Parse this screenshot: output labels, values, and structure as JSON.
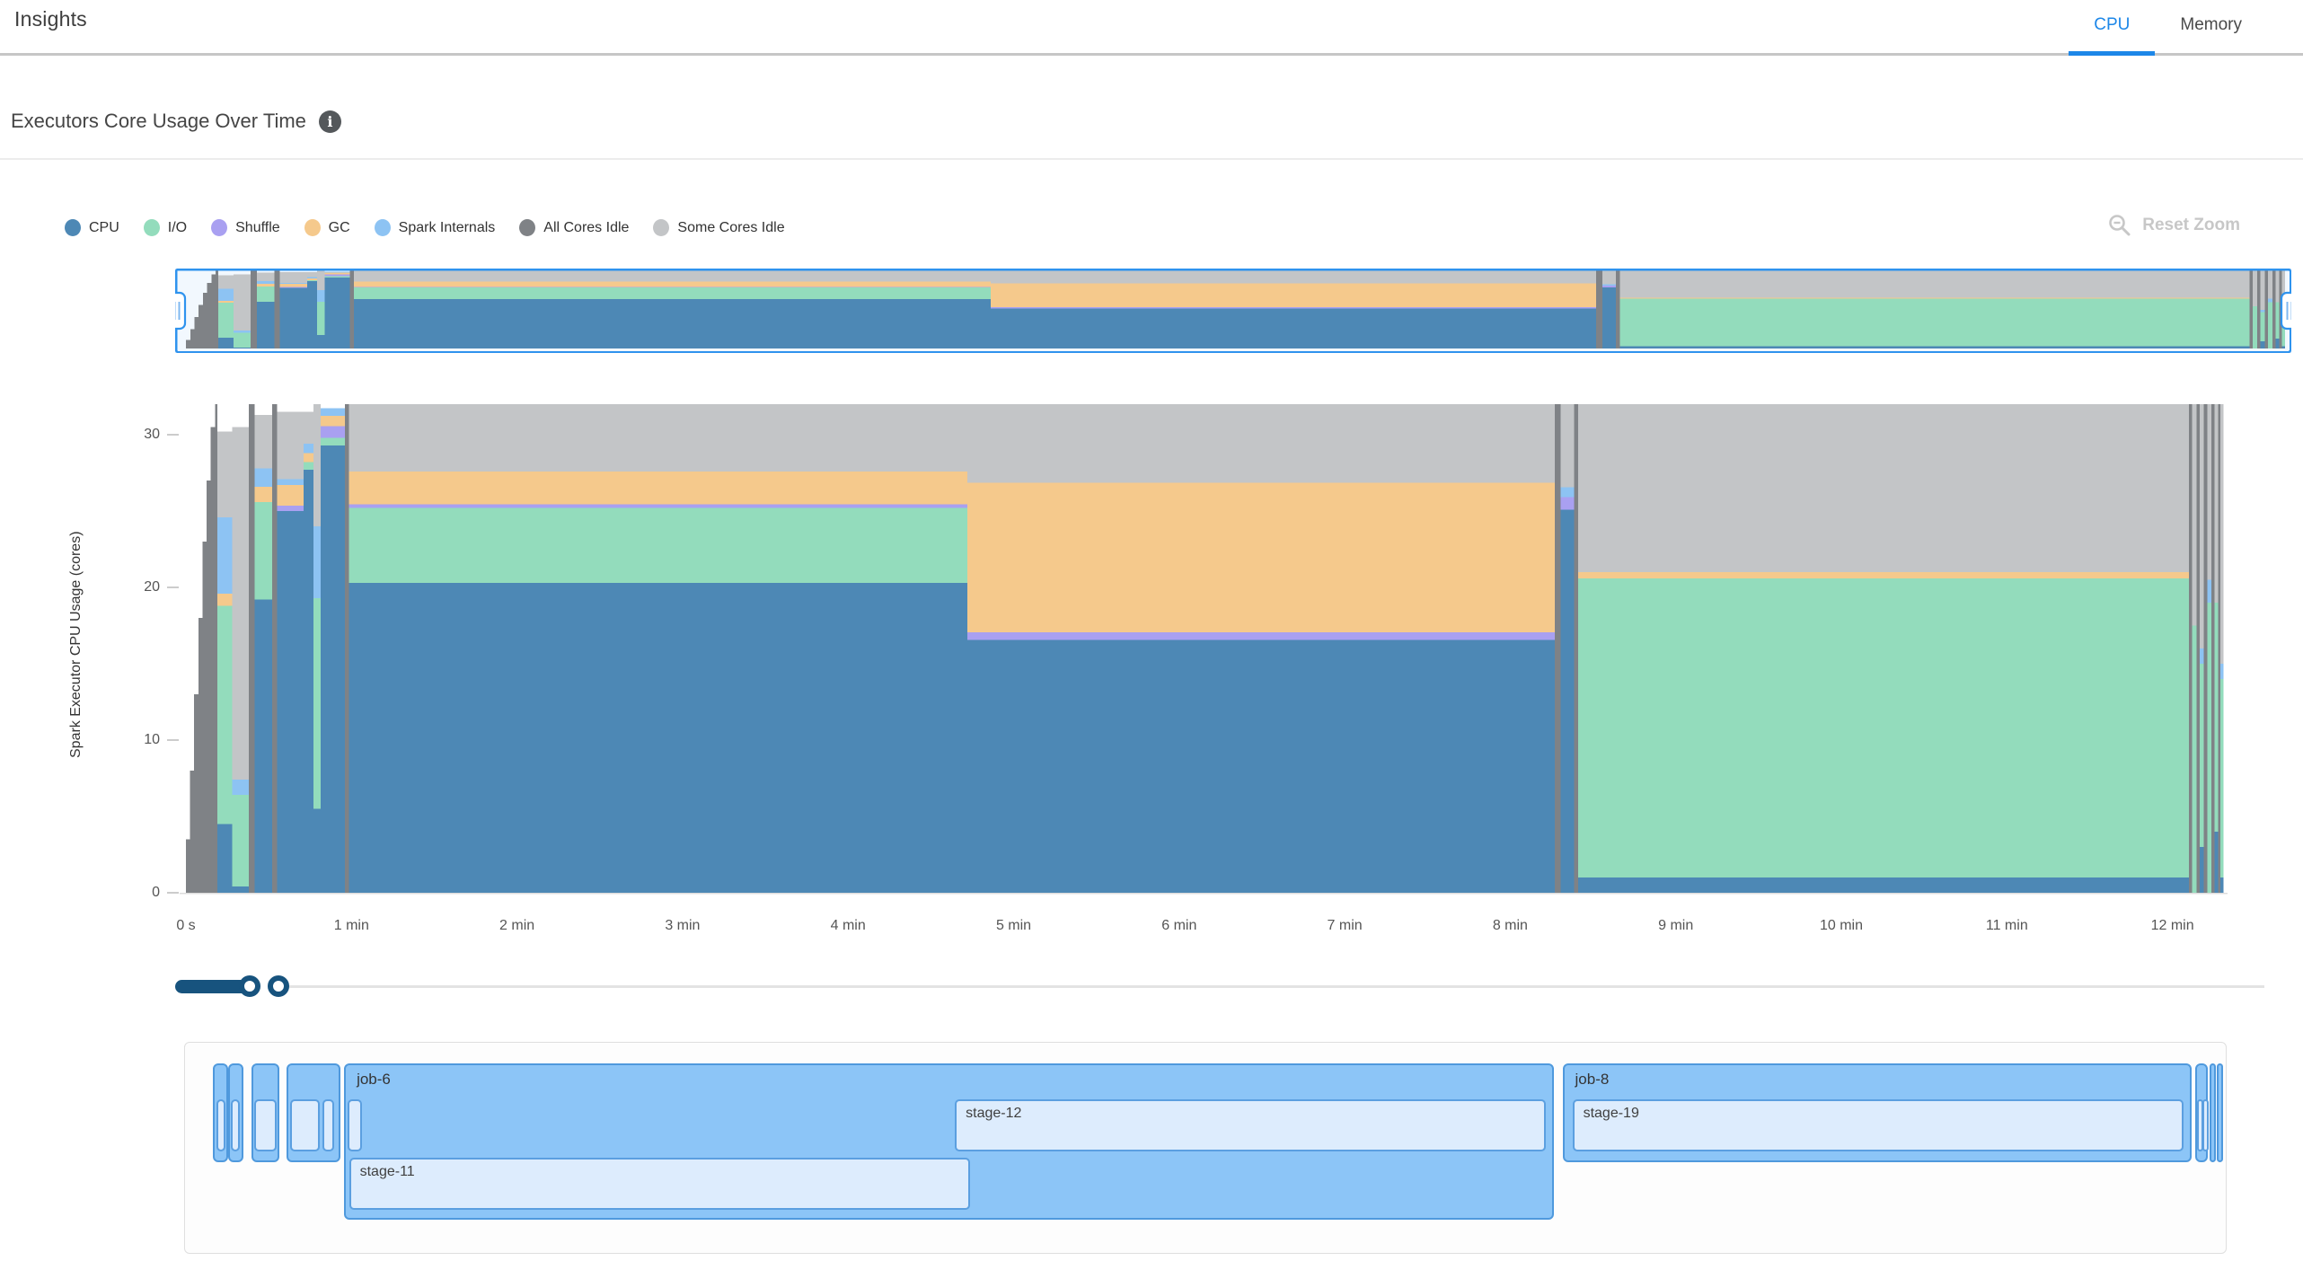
{
  "header": {
    "title": "Insights",
    "tabs": [
      {
        "label": "CPU",
        "active": true
      },
      {
        "label": "Memory",
        "active": false
      }
    ],
    "accent_color": "#1d87e8"
  },
  "section": {
    "title": "Executors Core Usage Over Time"
  },
  "controls": {
    "reset_zoom_label": "Reset Zoom"
  },
  "legend": [
    {
      "id": "cpu",
      "label": "CPU",
      "color": "#4d88b5"
    },
    {
      "id": "io",
      "label": "I/O",
      "color": "#93dcbc"
    },
    {
      "id": "shuffle",
      "label": "Shuffle",
      "color": "#a9a0f1"
    },
    {
      "id": "gc",
      "label": "GC",
      "color": "#f5c98c"
    },
    {
      "id": "internals",
      "label": "Spark Internals",
      "color": "#8dc3f3"
    },
    {
      "id": "all_idle",
      "label": "All Cores Idle",
      "color": "#7f8286"
    },
    {
      "id": "some_idle",
      "label": "Some Cores Idle",
      "color": "#c3c5c7"
    }
  ],
  "chart_data": {
    "type": "area",
    "stacked": true,
    "title": "Executors Core Usage Over Time",
    "ylabel": "Spark Executor CPU Usage (cores)",
    "ylim": [
      0,
      32
    ],
    "yticks": [
      0,
      10,
      20,
      30
    ],
    "x_domain_minutes": [
      0,
      12.31
    ],
    "xticks": [
      {
        "t": 0,
        "label": "0 s"
      },
      {
        "t": 1,
        "label": "1 min"
      },
      {
        "t": 2,
        "label": "2 min"
      },
      {
        "t": 3,
        "label": "3 min"
      },
      {
        "t": 4,
        "label": "4 min"
      },
      {
        "t": 5,
        "label": "5 min"
      },
      {
        "t": 6,
        "label": "6 min"
      },
      {
        "t": 7,
        "label": "7 min"
      },
      {
        "t": 8,
        "label": "8 min"
      },
      {
        "t": 9,
        "label": "9 min"
      },
      {
        "t": 10,
        "label": "10 min"
      },
      {
        "t": 11,
        "label": "11 min"
      },
      {
        "t": 12,
        "label": "12 min"
      }
    ],
    "series_order": [
      "cpu",
      "io",
      "shuffle",
      "gc",
      "internals",
      "all_idle",
      "some_idle"
    ],
    "series_colors": {
      "cpu": "#4d88b5",
      "io": "#93dcbc",
      "shuffle": "#a9a0f1",
      "gc": "#f5c98c",
      "internals": "#8dc3f3",
      "all_idle": "#7f8286",
      "some_idle": "#c3c5c7"
    },
    "segments_format": [
      "t0_min",
      "t1_min",
      "cpu",
      "io",
      "shuffle",
      "gc",
      "internals",
      "all_cores_idle",
      "some_cores_idle"
    ],
    "segments": [
      [
        0.0,
        0.025,
        0,
        0,
        0,
        0,
        0,
        3.5,
        0
      ],
      [
        0.025,
        0.05,
        0,
        0,
        0,
        0,
        0,
        8,
        0
      ],
      [
        0.05,
        0.075,
        0,
        0,
        0,
        0,
        0,
        13,
        0
      ],
      [
        0.075,
        0.1,
        0,
        0,
        0,
        0,
        0,
        18,
        0
      ],
      [
        0.1,
        0.125,
        0,
        0,
        0,
        0,
        0,
        23,
        0
      ],
      [
        0.125,
        0.15,
        0,
        0,
        0,
        0,
        0,
        27,
        0
      ],
      [
        0.15,
        0.175,
        0,
        0,
        0,
        0,
        0,
        30.5,
        0
      ],
      [
        0.175,
        0.19,
        0,
        0,
        0,
        0,
        0,
        32,
        0
      ],
      [
        0.19,
        0.28,
        4.5,
        14.3,
        0,
        0.8,
        5,
        0,
        5.6
      ],
      [
        0.28,
        0.38,
        0.4,
        6,
        0,
        0,
        1,
        0,
        23.1
      ],
      [
        0.38,
        0.415,
        0,
        0,
        0,
        0,
        0,
        32,
        0
      ],
      [
        0.415,
        0.52,
        19.2,
        6.4,
        0,
        1,
        1.2,
        0,
        3.5
      ],
      [
        0.52,
        0.55,
        0,
        0,
        0,
        0,
        0,
        32,
        0
      ],
      [
        0.55,
        0.71,
        25,
        0,
        0.35,
        1.35,
        0.4,
        0,
        4.4
      ],
      [
        0.71,
        0.77,
        27.7,
        0.5,
        0,
        0.6,
        0.6,
        0,
        2.1
      ],
      [
        0.77,
        0.815,
        5.5,
        13.8,
        0,
        0,
        4.7,
        0,
        8
      ],
      [
        0.815,
        0.96,
        29.3,
        0.5,
        0.75,
        0.7,
        0.5,
        0,
        0
      ],
      [
        0.96,
        0.985,
        0,
        0,
        0,
        0,
        0,
        32,
        0
      ],
      [
        0.985,
        4.72,
        20.3,
        4.9,
        0.25,
        2.15,
        0,
        0,
        4.4
      ],
      [
        4.72,
        8.27,
        16.55,
        0,
        0.5,
        9.8,
        0,
        0,
        5.15
      ],
      [
        8.27,
        8.305,
        0,
        0,
        0,
        0,
        0,
        32,
        0
      ],
      [
        8.305,
        8.385,
        25.1,
        0,
        0.8,
        0,
        0.65,
        0,
        5.45
      ],
      [
        8.385,
        8.41,
        0,
        0,
        0,
        0,
        0,
        32,
        0
      ],
      [
        8.41,
        12.1,
        1,
        19.6,
        0,
        0.4,
        0,
        0,
        11
      ],
      [
        12.1,
        12.12,
        0,
        0,
        0,
        0,
        0,
        32,
        0
      ],
      [
        12.12,
        12.145,
        0,
        17.5,
        0,
        0,
        0,
        0,
        14.5
      ],
      [
        12.145,
        12.165,
        0,
        0,
        0,
        0,
        0,
        32,
        0
      ],
      [
        12.165,
        12.19,
        3,
        12,
        0,
        0,
        1,
        0,
        16
      ],
      [
        12.19,
        12.21,
        0,
        0,
        0,
        0,
        0,
        32,
        0
      ],
      [
        12.21,
        12.235,
        0,
        19,
        0,
        0,
        1.5,
        0,
        11.5
      ],
      [
        12.235,
        12.255,
        0,
        0,
        0,
        0,
        0,
        32,
        0
      ],
      [
        12.255,
        12.275,
        4,
        15,
        0,
        0,
        0,
        0,
        13
      ],
      [
        12.275,
        12.29,
        0,
        0,
        0,
        0,
        0,
        32,
        0
      ],
      [
        12.29,
        12.31,
        1,
        13,
        0,
        0,
        1,
        0,
        17
      ]
    ]
  },
  "minimap": {
    "selected_range": "full",
    "brush_color": "#2f93ee"
  },
  "slider": {
    "type": "range-zoom",
    "handle_color": "#17537e"
  },
  "timeline": {
    "style": {
      "job_fill": "#8cc5f7",
      "job_border": "#4f99dd",
      "stage_fill": "#ddecfd",
      "stage_border": "#5b9fe0"
    },
    "jobs": [
      {
        "label": "",
        "t0": 0.16,
        "t1": 0.25,
        "tall": false,
        "stages": [
          {
            "label": "",
            "t0": 0.178,
            "t1": 0.232
          }
        ]
      },
      {
        "label": "",
        "t0": 0.252,
        "t1": 0.34,
        "tall": false,
        "stages": [
          {
            "label": "",
            "t0": 0.268,
            "t1": 0.322
          }
        ]
      },
      {
        "label": "",
        "t0": 0.39,
        "t1": 0.56,
        "tall": false,
        "stages": [
          {
            "label": "",
            "t0": 0.405,
            "t1": 0.545
          }
        ]
      },
      {
        "label": "",
        "t0": 0.6,
        "t1": 0.93,
        "tall": false,
        "stages": [
          {
            "label": "",
            "t0": 0.625,
            "t1": 0.805
          },
          {
            "label": "",
            "t0": 0.82,
            "t1": 0.89
          }
        ]
      },
      {
        "label": "job-6",
        "t0": 0.95,
        "t1": 8.26,
        "tall": true,
        "stages": [
          {
            "label": "",
            "t0": 0.97,
            "t1": 1.06
          },
          {
            "label": "stage-12",
            "t0": 4.64,
            "t1": 8.21
          },
          {
            "label": "stage-11",
            "t0": 0.98,
            "t1": 4.73,
            "row": 3
          }
        ]
      },
      {
        "label": "job-8",
        "t0": 8.31,
        "t1": 12.11,
        "tall": false,
        "stages": [
          {
            "label": "stage-19",
            "t0": 8.37,
            "t1": 12.06
          }
        ]
      },
      {
        "label": "",
        "t0": 12.13,
        "t1": 12.21,
        "tall": false,
        "stages": [
          {
            "label": "",
            "t0": 12.145,
            "t1": 12.165
          },
          {
            "label": "",
            "t0": 12.175,
            "t1": 12.195
          }
        ]
      },
      {
        "label": "",
        "t0": 12.22,
        "t1": 12.25,
        "tall": false,
        "stages": []
      },
      {
        "label": "",
        "t0": 12.26,
        "t1": 12.29,
        "tall": false,
        "stages": []
      }
    ]
  }
}
